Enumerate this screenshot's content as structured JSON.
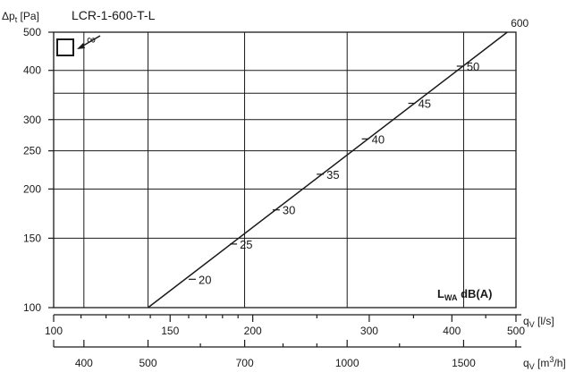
{
  "chart_data": {
    "type": "line",
    "title": "LCR-1-600-T-L",
    "ylabel": "Δpt [Pa]",
    "y_scale": "log",
    "ylim": [
      100,
      500
    ],
    "yticks": [
      100,
      150,
      200,
      250,
      300,
      400,
      500
    ],
    "ygrid": [
      100,
      150,
      200,
      250,
      300,
      350,
      400,
      500
    ],
    "x_scale": "log",
    "xlim_ls": [
      100,
      500
    ],
    "x_ls_label": "qV [l/s]",
    "x_ls_ticks": [
      100,
      150,
      200,
      300,
      400,
      500
    ],
    "x_ls_minor": [
      110,
      120,
      130,
      140,
      160,
      170,
      180,
      190,
      250,
      350,
      450
    ],
    "x_m3h_label": "qV [m3/h]",
    "x_m3h_ticks": [
      400,
      500,
      700,
      1000,
      1500
    ],
    "x_m3h_minor": [
      600,
      800,
      900,
      1200
    ],
    "xgrid_ls": [
      111.1,
      138.9,
      194.4,
      277.8,
      416.7
    ],
    "series": [
      {
        "name": "600",
        "x": [
          138.9,
          485
        ],
        "y": [
          100,
          500
        ]
      }
    ],
    "sound_label": "LWA dB(A)",
    "sound_marks": [
      {
        "value": "20",
        "x": 162,
        "y": 118
      },
      {
        "value": "25",
        "x": 187,
        "y": 145
      },
      {
        "value": "30",
        "x": 217,
        "y": 177
      },
      {
        "value": "35",
        "x": 253,
        "y": 218
      },
      {
        "value": "40",
        "x": 296,
        "y": 268
      },
      {
        "value": "45",
        "x": 348,
        "y": 330
      },
      {
        "value": "50",
        "x": 412,
        "y": 410
      }
    ],
    "inset_label": "∞",
    "grid": true
  }
}
